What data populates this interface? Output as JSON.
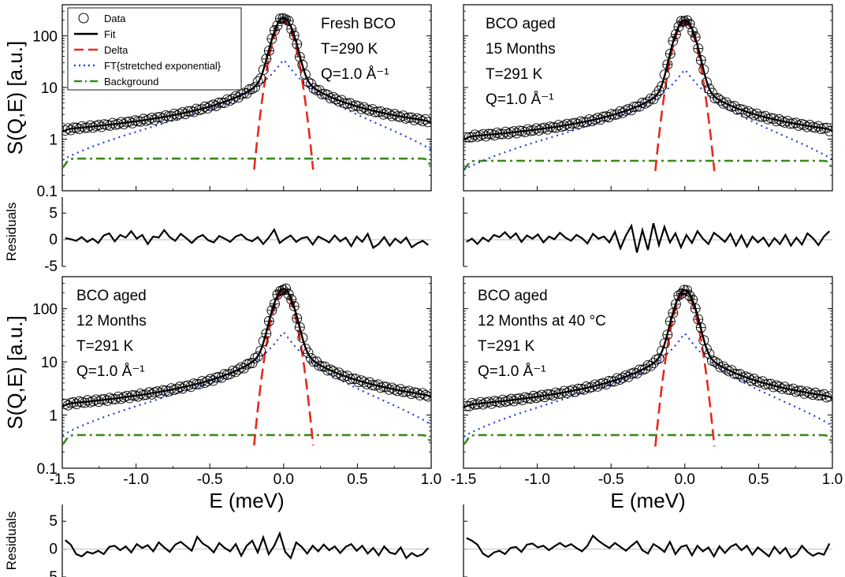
{
  "figure": {
    "legend": [
      {
        "label": "Data",
        "style": "circle"
      },
      {
        "label": "Fit",
        "style": "solid",
        "color": "#000000"
      },
      {
        "label": "Delta",
        "style": "dash",
        "color": "#e8281e"
      },
      {
        "label": "FT{stretched exponential}",
        "style": "dot",
        "color": "#1f3fdc"
      },
      {
        "label": "Background",
        "style": "dashdot",
        "color": "#3a8a1a"
      }
    ],
    "ylabel_main": "S(Q,E) [a.u.]",
    "ylabel_residuals": "Residuals",
    "xlabel": "E (meV)",
    "x_ticks": [
      "-1.5",
      "-1.0",
      "-0.5",
      "0.0",
      "0.5",
      "1.0"
    ],
    "y_ticks": [
      "100",
      "10",
      "1",
      "0.1"
    ],
    "res_ticks": [
      "5",
      "0",
      "-5"
    ],
    "colors": {
      "fit": "#000000",
      "delta": "#e8281e",
      "stretched": "#1f3fdc",
      "background": "#3a8a1a",
      "zero_line": "#bbbbbb"
    }
  },
  "chart_data": [
    {
      "type": "line",
      "panel": "top-left",
      "annotation": [
        "Fresh BCO",
        "T=290 K",
        "Q=1.0 Å⁻¹"
      ],
      "xlim": [
        -1.5,
        1.0
      ],
      "ylim": [
        0.1,
        400
      ],
      "yscale": "log",
      "peak": 190,
      "background": 0.42,
      "delta_peak": 190,
      "stretched_peak": 34,
      "residual_range": [
        -5,
        8
      ],
      "residuals": [
        0.3,
        0.1,
        -0.2,
        0.5,
        -0.4,
        0.2,
        -0.6,
        0.8,
        1.2,
        -0.3,
        0.9,
        0.4,
        1.6,
        0.2,
        0.9,
        -0.8,
        0.6,
        0.4,
        1.8,
        0.5,
        -0.2,
        1.1,
        0.3,
        -0.6,
        0.4,
        0.9,
        -0.1,
        -0.5,
        0.7,
        0.2,
        -0.4,
        0.6,
        1.0,
        0.1,
        -0.3,
        0.5,
        -0.8,
        0.4,
        1.9,
        -0.6,
        0.2,
        0.8,
        -0.4,
        0.3,
        0.5,
        -0.9,
        0.6,
        0.1,
        -0.5,
        0.8,
        -0.3,
        0.4,
        -1.2,
        0.6,
        -0.4,
        1.1,
        -1.5,
        -0.8,
        0.5,
        -1.1,
        0.2,
        -0.6,
        0.4,
        -1.4,
        -0.7,
        -0.2,
        -1.0
      ]
    },
    {
      "type": "line",
      "panel": "top-right",
      "annotation": [
        "BCO aged",
        "15 Months",
        "T=291 K",
        "Q=1.0 Å⁻¹"
      ],
      "xlim": [
        -1.5,
        1.0
      ],
      "ylim": [
        0.1,
        400
      ],
      "yscale": "log",
      "peak": 180,
      "background": 0.38,
      "delta_peak": 180,
      "stretched_peak": 22,
      "residual_range": [
        -5,
        8
      ],
      "residuals": [
        -0.4,
        0.2,
        -0.8,
        0.4,
        -0.3,
        0.9,
        0.5,
        1.4,
        0.3,
        1.2,
        -0.4,
        0.8,
        0.2,
        1.0,
        -0.5,
        0.6,
        0.1,
        1.3,
        0.4,
        -0.2,
        0.9,
        0.3,
        -0.7,
        1.1,
        0.2,
        0.6,
        -0.5,
        1.5,
        -1.6,
        0.8,
        2.6,
        -2.4,
        1.8,
        -1.9,
        3.1,
        -1.0,
        2.4,
        -0.5,
        1.2,
        -1.4,
        0.9,
        -0.6,
        1.6,
        0.2,
        -0.8,
        1.3,
        0.5,
        -0.4,
        1.1,
        -1.1,
        0.8,
        -1.3,
        0.6,
        -0.5,
        0.4,
        -1.2,
        0.3,
        -0.8,
        0.9,
        -1.1,
        0.4,
        -0.9,
        1.2,
        0.3,
        -1.0,
        0.6,
        1.6
      ]
    },
    {
      "type": "line",
      "panel": "bottom-left",
      "annotation": [
        "BCO aged",
        "12 Months",
        "T=291 K",
        "Q=1.0 Å⁻¹"
      ],
      "xlim": [
        -1.5,
        1.0
      ],
      "ylim": [
        0.1,
        400
      ],
      "yscale": "log",
      "peak": 200,
      "background": 0.42,
      "delta_peak": 200,
      "stretched_peak": 36,
      "residual_range": [
        -5,
        8
      ],
      "residuals": [
        1.6,
        0.8,
        -0.9,
        -1.3,
        -0.5,
        -0.8,
        -0.3,
        -0.9,
        0.4,
        0.6,
        -0.2,
        0.5,
        -0.6,
        0.9,
        0.2,
        0.7,
        -0.4,
        1.2,
        0.3,
        -0.5,
        0.8,
        1.3,
        0.5,
        -0.3,
        2.2,
        1.0,
        0.4,
        -0.6,
        1.1,
        0.2,
        -0.4,
        0.9,
        -1.2,
        0.6,
        1.5,
        -0.6,
        2.1,
        -0.9,
        0.6,
        2.8,
        -0.5,
        -1.6,
        1.2,
        0.4,
        -0.8,
        0.6,
        -0.4,
        0.8,
        -0.2,
        0.5,
        -0.7,
        0.4,
        0.9,
        -0.3,
        0.6,
        -0.8,
        0.2,
        -1.1,
        0.5,
        -0.6,
        -0.9,
        0.3,
        -1.6,
        -0.7,
        -1.3,
        -0.9,
        0.2
      ]
    },
    {
      "type": "line",
      "panel": "bottom-right",
      "annotation": [
        "BCO aged",
        "12 Months at 40 °C",
        "T=291 K",
        "Q=1.0 Å⁻¹"
      ],
      "xlim": [
        -1.5,
        1.0
      ],
      "ylim": [
        0.1,
        400
      ],
      "yscale": "log",
      "peak": 190,
      "background": 0.42,
      "delta_peak": 190,
      "stretched_peak": 34,
      "residual_range": [
        -5,
        8
      ],
      "residuals": [
        2.0,
        1.5,
        0.8,
        -0.8,
        -1.4,
        -0.6,
        -0.3,
        -0.9,
        0.2,
        0.4,
        -0.5,
        0.8,
        1.0,
        0.3,
        0.6,
        -0.2,
        0.5,
        1.1,
        0.4,
        0.9,
        0.2,
        -0.4,
        0.6,
        2.4,
        1.5,
        0.8,
        0.2,
        1.1,
        0.4,
        -0.3,
        0.6,
        1.4,
        -0.2,
        -0.8,
        0.9,
        0.3,
        -0.5,
        1.3,
        -0.9,
        0.4,
        0.7,
        -1.1,
        0.6,
        -0.4,
        0.3,
        -1.3,
        0.5,
        -0.7,
        0.4,
        0.9,
        -0.2,
        0.6,
        -1.0,
        0.3,
        -0.5,
        -1.3,
        0.4,
        -0.8,
        0.2,
        -1.5,
        -0.9,
        0.6,
        -0.5,
        -1.2,
        -0.7,
        -1.0,
        1.0
      ]
    }
  ]
}
